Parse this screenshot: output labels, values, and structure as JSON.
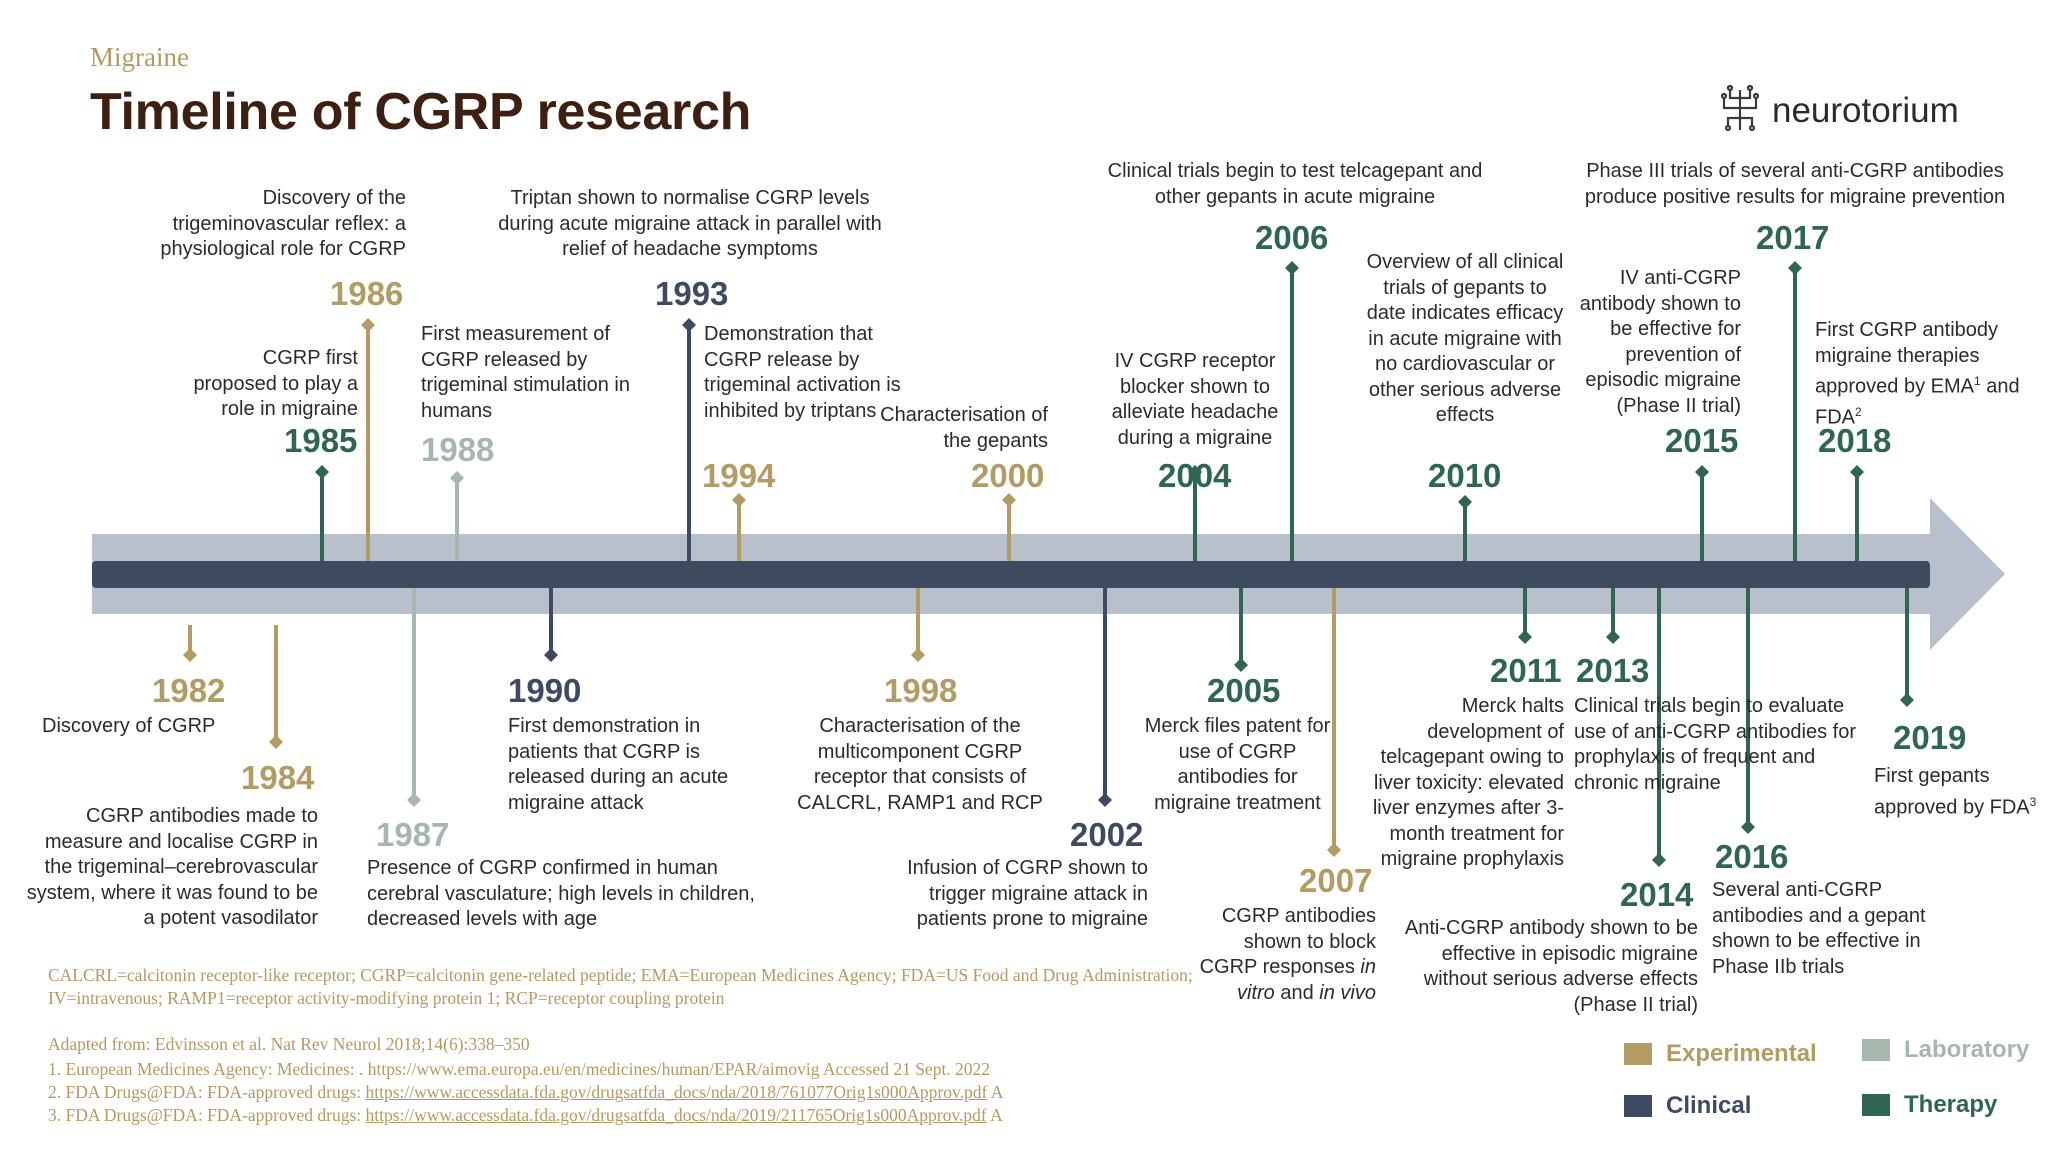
{
  "header": {
    "kicker": "Migraine",
    "title": "Timeline of CGRP research"
  },
  "logo": {
    "name": "neurotorium",
    "icon": "brain-tree-icon"
  },
  "colors": {
    "experimental": "#b39c63",
    "laboratory": "#a6b7ae",
    "clinical": "#3d4a62",
    "therapy": "#2e6653",
    "axis_bar": "#3e4a5e",
    "arrow": "#b8c0cd"
  },
  "events": [
    {
      "id": "e1982",
      "year": "1982",
      "category": "experimental",
      "text": "Discovery of CGRP"
    },
    {
      "id": "e1984",
      "year": "1984",
      "category": "experimental",
      "text": "CGRP antibodies made to measure and localise CGRP in the trigeminal–cerebrovascular system, where it was found to be a potent vasodilator"
    },
    {
      "id": "e1985",
      "year": "1985",
      "category": "therapy",
      "text": "CGRP first proposed to play a role in migraine"
    },
    {
      "id": "e1986",
      "year": "1986",
      "category": "experimental",
      "text": "Discovery of the trigeminovascular reflex: a physiological role for CGRP"
    },
    {
      "id": "e1987",
      "year": "1987",
      "category": "laboratory",
      "text": "Presence of CGRP confirmed in human cerebral vasculature; high levels in children, decreased levels with age"
    },
    {
      "id": "e1988",
      "year": "1988",
      "category": "laboratory",
      "text": "First measurement of CGRP released by trigeminal stimulation in humans"
    },
    {
      "id": "e1990",
      "year": "1990",
      "category": "clinical",
      "text": "First demonstration in patients that CGRP is released during an acute migraine attack"
    },
    {
      "id": "e1993",
      "year": "1993",
      "category": "clinical",
      "text": "Triptan shown to normalise CGRP levels during acute migraine attack in parallel with relief of headache symptoms"
    },
    {
      "id": "e1994",
      "year": "1994",
      "category": "experimental",
      "text": "Demonstration that CGRP release by trigeminal activation is inhibited by triptans"
    },
    {
      "id": "e1998",
      "year": "1998",
      "category": "experimental",
      "text": "Characterisation of the multicomponent CGRP receptor that consists of CALCRL, RAMP1 and RCP"
    },
    {
      "id": "e2000",
      "year": "2000",
      "category": "experimental",
      "text": "Characterisation of the gepants"
    },
    {
      "id": "e2002",
      "year": "2002",
      "category": "clinical",
      "text": "Infusion of CGRP shown to trigger migraine attack in patients prone to migraine"
    },
    {
      "id": "e2004",
      "year": "2004",
      "category": "therapy",
      "text": "IV CGRP receptor blocker shown to alleviate headache during a migraine"
    },
    {
      "id": "e2005",
      "year": "2005",
      "category": "therapy",
      "text": "Merck files patent for use of CGRP antibodies for migraine treatment"
    },
    {
      "id": "e2006",
      "year": "2006",
      "category": "therapy",
      "text": "Clinical trials begin to test telcagepant and other gepants in acute migraine"
    },
    {
      "id": "e2007",
      "year": "2007",
      "category": "experimental",
      "text": "CGRP antibodies shown to block CGRP responses",
      "text_b": "in vitro",
      "text_c": "and",
      "text_d": "in vivo"
    },
    {
      "id": "e2010",
      "year": "2010",
      "category": "therapy",
      "text": "Overview of all clinical trials of gepants to date indicates efficacy in acute migraine with no cardiovascular or other serious adverse effects"
    },
    {
      "id": "e2011",
      "year": "2011",
      "category": "therapy",
      "text": "Merck halts development of telcagepant owing to liver toxicity: elevated liver enzymes after 3-month treatment for migraine prophylaxis"
    },
    {
      "id": "e2013",
      "year": "2013",
      "category": "therapy",
      "text": "Clinical trials begin to evaluate use of anti-CGRP antibodies for prophylaxis of frequent and chronic migraine"
    },
    {
      "id": "e2014",
      "year": "2014",
      "category": "therapy",
      "text": "Anti-CGRP antibody shown to be effective in episodic migraine without serious adverse effects (Phase II trial)"
    },
    {
      "id": "e2015",
      "year": "2015",
      "category": "therapy",
      "text": "IV anti-CGRP antibody shown to be effective for prevention of episodic migraine (Phase II trial)"
    },
    {
      "id": "e2016",
      "year": "2016",
      "category": "therapy",
      "text": "Several anti-CGRP antibodies and a gepant shown to be effective in Phase IIb trials"
    },
    {
      "id": "e2017",
      "year": "2017",
      "category": "therapy",
      "text": "Phase III trials of several anti-CGRP antibodies produce positive results for migraine prevention"
    },
    {
      "id": "e2018",
      "year": "2018",
      "category": "therapy",
      "text": "First CGRP antibody migraine therapies approved by EMA",
      "sup1": "1",
      "text_b": "and FDA",
      "sup2": "2"
    },
    {
      "id": "e2019",
      "year": "2019",
      "category": "therapy",
      "text": "First gepants approved by FDA",
      "sup1": "3"
    }
  ],
  "legend": [
    {
      "label": "Experimental",
      "category": "experimental"
    },
    {
      "label": "Laboratory",
      "category": "laboratory"
    },
    {
      "label": "Clinical",
      "category": "clinical"
    },
    {
      "label": "Therapy",
      "category": "therapy"
    }
  ],
  "footnotes": {
    "abbreviations": "CALCRL=calcitonin receptor-like receptor; CGRP=calcitonin gene-related peptide; EMA=European Medicines Agency; FDA=US Food and Drug Administration; IV=intravenous; RAMP1=receptor activity-modifying protein 1; RCP=receptor coupling protein",
    "adapted": "Adapted from: Edvinsson et al. Nat Rev Neurol 2018;14(6):338–350",
    "ref1": "1.  European Medicines Agency: Medicines: . https://www.ema.europa.eu/en/medicines/human/EPAR/aimovig  Accessed 21 Sept. 2022",
    "ref2_prefix": "2.  FDA Drugs@FDA: FDA-approved drugs: ",
    "ref2_url": "https://www.accessdata.fda.gov/drugsatfda_docs/nda/2018/761077Orig1s000Approv.pdf",
    "ref2_suffix": " A",
    "ref3_prefix": "3.  FDA Drugs@FDA: FDA-approved drugs: ",
    "ref3_url": "https://www.accessdata.fda.gov/drugsatfda_docs/nda/2019/211765Orig1s000Approv.pdf",
    "ref3_suffix": " A"
  }
}
